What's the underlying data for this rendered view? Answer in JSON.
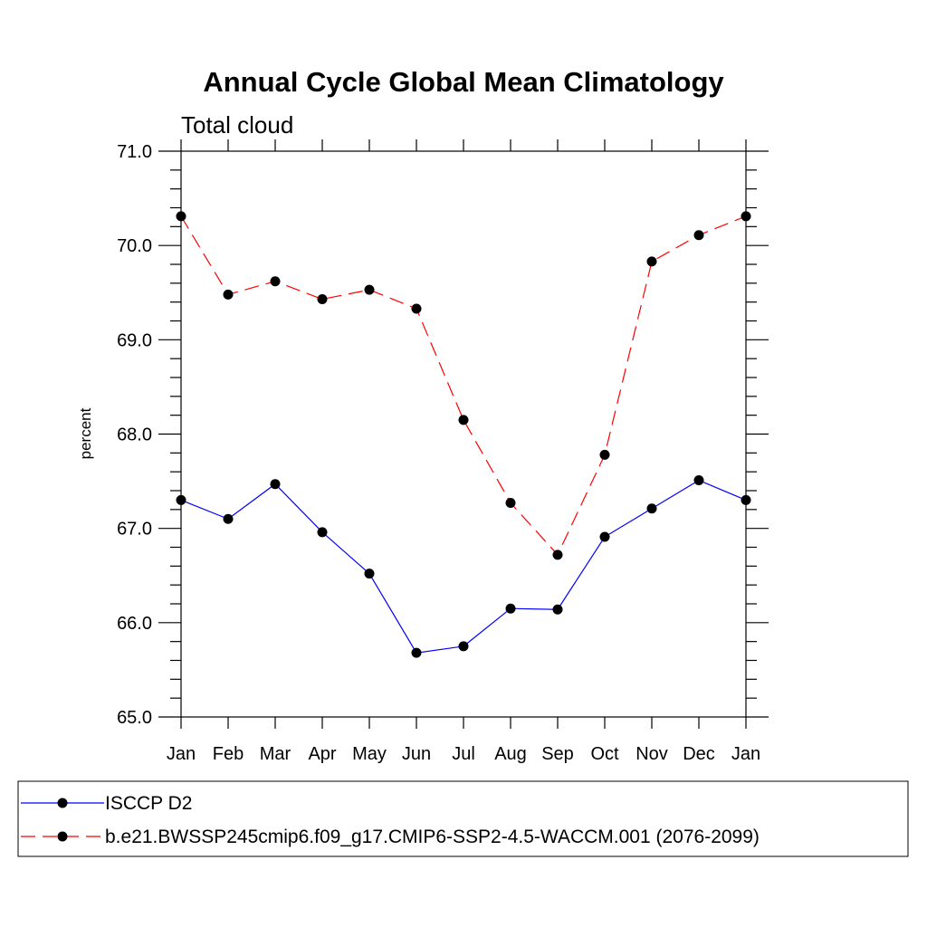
{
  "chart_data": {
    "type": "line",
    "title": "Annual Cycle Global Mean Climatology",
    "subtitle": "Total cloud",
    "xlabel": "",
    "ylabel": "percent",
    "categories": [
      "Jan",
      "Feb",
      "Mar",
      "Apr",
      "May",
      "Jun",
      "Jul",
      "Aug",
      "Sep",
      "Oct",
      "Nov",
      "Dec",
      "Jan"
    ],
    "ylim": [
      65.0,
      71.0
    ],
    "y_ticks": [
      "65.0",
      "66.0",
      "67.0",
      "68.0",
      "69.0",
      "70.0",
      "71.0"
    ],
    "grid": false,
    "legend_position": "bottom",
    "series": [
      {
        "name": "ISCCP D2",
        "color": "#0000ff",
        "dash": "solid",
        "values": [
          67.3,
          67.1,
          67.47,
          66.96,
          66.52,
          65.68,
          65.75,
          66.15,
          66.14,
          66.91,
          67.21,
          67.51,
          67.3
        ]
      },
      {
        "name": "b.e21.BWSSP245cmip6.f09_g17.CMIP6-SSP2-4.5-WACCM.001 (2076-2099)",
        "color": "#ff0000",
        "dash": "dashed",
        "values": [
          70.31,
          69.48,
          69.62,
          69.43,
          69.53,
          69.33,
          68.15,
          67.27,
          66.72,
          67.78,
          69.83,
          70.11,
          70.31
        ]
      }
    ]
  }
}
